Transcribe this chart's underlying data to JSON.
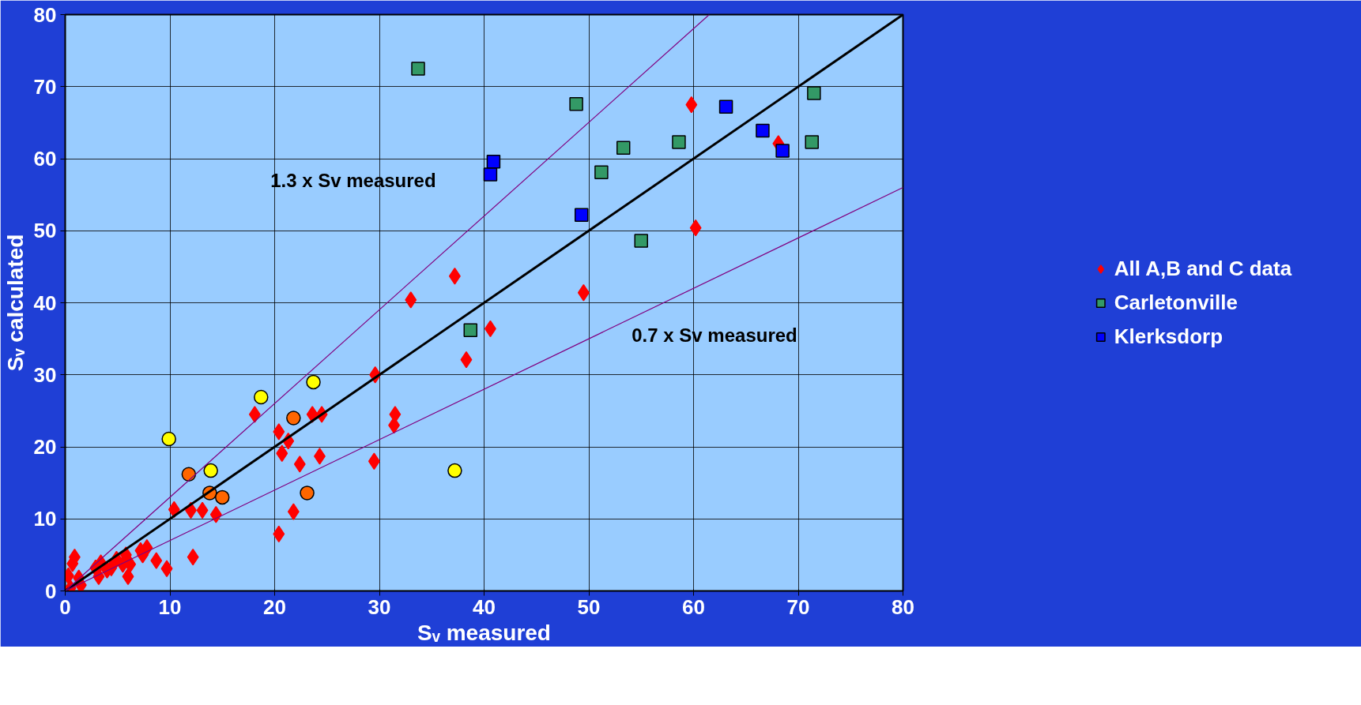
{
  "chart_data": {
    "type": "scatter",
    "xlabel": "Sᵥ measured",
    "ylabel": "Sᵥ calculated",
    "xlim": [
      0,
      80
    ],
    "ylim": [
      0,
      80
    ],
    "xticks": [
      0,
      10,
      20,
      30,
      40,
      50,
      60,
      70,
      80
    ],
    "yticks": [
      0,
      10,
      20,
      30,
      40,
      50,
      60,
      70,
      80
    ],
    "grid": true,
    "legend": "right",
    "series": [
      {
        "name": "All A,B and C data",
        "color": "#ff0000",
        "marker": "diamond",
        "x": [
          0.3,
          0.7,
          0.9,
          0.5,
          1.3,
          1.5,
          2.9,
          3.4,
          3.2,
          4.0,
          4.4,
          4.9,
          5.5,
          5.8,
          6.0,
          6.2,
          7.2,
          7.4,
          7.8,
          8.7,
          9.7,
          10.4,
          12.0,
          13.1,
          14.4,
          12.2,
          18.1,
          20.4,
          20.7,
          21.3,
          22.4,
          21.8,
          20.4,
          23.6,
          24.5,
          24.3,
          29.6,
          29.5,
          31.5,
          31.4,
          33.0,
          37.2,
          38.3,
          40.6,
          49.5,
          59.8,
          60.2,
          68.1
        ],
        "values": [
          2.1,
          3.8,
          4.7,
          0.4,
          1.8,
          0.8,
          3.2,
          3.9,
          2.0,
          2.9,
          3.2,
          4.4,
          3.7,
          5.0,
          2.0,
          3.7,
          5.6,
          5.0,
          6.0,
          4.2,
          3.1,
          11.3,
          11.2,
          11.2,
          10.6,
          4.7,
          24.5,
          22.1,
          19.1,
          20.8,
          17.6,
          11.0,
          7.9,
          24.5,
          24.5,
          18.7,
          30.0,
          18.0,
          24.5,
          23.0,
          40.4,
          43.7,
          32.1,
          36.4,
          41.4,
          67.5,
          50.4,
          62.1
        ]
      },
      {
        "color": "#ffff00",
        "marker": "circle",
        "x": [
          9.9,
          13.9,
          18.7,
          23.7,
          37.2
        ],
        "values": [
          21.1,
          16.7,
          26.9,
          29.0,
          16.7
        ]
      },
      {
        "color": "#ff6600",
        "marker": "circle",
        "x": [
          11.8,
          13.8,
          15.0,
          21.8,
          23.1
        ],
        "values": [
          16.2,
          13.6,
          13.0,
          24.0,
          13.6
        ]
      },
      {
        "name": "Carletonville",
        "color": "#339966",
        "marker": "square",
        "x": [
          33.7,
          48.8,
          53.3,
          51.2,
          58.6,
          71.5,
          71.3,
          55.0,
          38.7
        ],
        "values": [
          72.5,
          67.6,
          61.5,
          58.1,
          62.3,
          69.1,
          62.3,
          48.6,
          36.2
        ]
      },
      {
        "name": "Klerksdorp",
        "color": "#0000ff",
        "marker": "square",
        "x": [
          40.9,
          40.6,
          49.3,
          63.1,
          66.6,
          68.5
        ],
        "values": [
          59.6,
          57.8,
          52.2,
          67.2,
          63.9,
          61.1
        ]
      },
      {
        "type": "line",
        "color": "#000000",
        "x": [
          0,
          80
        ],
        "values": [
          0,
          80
        ]
      },
      {
        "type": "line",
        "color": "#800080",
        "x": [
          0,
          61.5
        ],
        "values": [
          0,
          80
        ]
      },
      {
        "type": "line",
        "color": "#800080",
        "x": [
          0,
          80
        ],
        "values": [
          0,
          56
        ]
      }
    ],
    "annotations": [
      "1.3 x Sv measured",
      "0.7 x Sv measured"
    ]
  }
}
